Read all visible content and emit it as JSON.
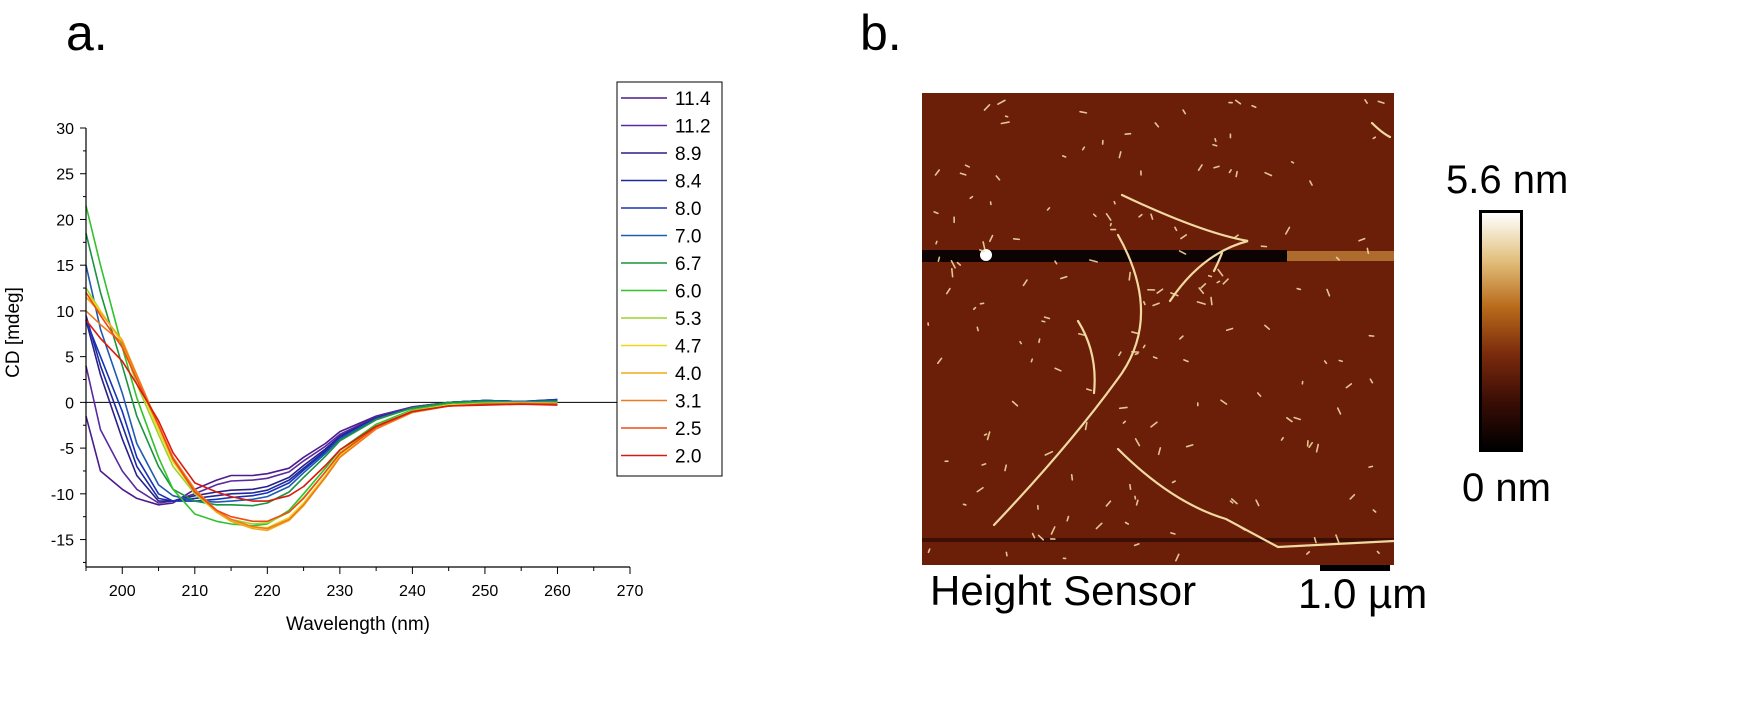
{
  "panel_a": {
    "label": "a."
  },
  "panel_b": {
    "label": "b.",
    "image_caption": "Height Sensor",
    "scale_bar_label": "1.0 µm",
    "colorbar": {
      "max_label": "5.6 nm",
      "min_label": "0 nm",
      "max_value_nm": 5.6,
      "min_value_nm": 0,
      "colors": [
        "#000000",
        "#3a0d05",
        "#7a2a0c",
        "#b86a1a",
        "#e2c07e",
        "#ffffff"
      ]
    },
    "background_color": "#6b1e08",
    "fiber_color": "#f1d9a2"
  },
  "chart_data": {
    "type": "line",
    "title": "",
    "xlabel": "Wavelength (nm)",
    "ylabel": "CD [mdeg]",
    "xlim": [
      195,
      270
    ],
    "ylim": [
      -18,
      30
    ],
    "xticks": [
      200,
      210,
      220,
      230,
      240,
      250,
      260,
      270
    ],
    "yticks": [
      30,
      25,
      20,
      15,
      10,
      5,
      0,
      -5,
      -10,
      -15
    ],
    "zero_line": true,
    "legend_position": "top-right",
    "x": [
      195,
      197,
      200,
      202,
      205,
      207,
      210,
      213,
      215,
      218,
      220,
      223,
      225,
      228,
      230,
      235,
      240,
      245,
      250,
      255,
      260
    ],
    "series": [
      {
        "name": "11.4",
        "color": "#4b1d8f",
        "values": [
          -1.5,
          -7.5,
          -9.5,
          -10.5,
          -11.2,
          -11.0,
          -9.5,
          -8.5,
          -8.0,
          -8.0,
          -7.8,
          -7.2,
          -6.0,
          -4.5,
          -3.2,
          -1.5,
          -0.5,
          0.0,
          0.2,
          0.1,
          0.2
        ]
      },
      {
        "name": "11.2",
        "color": "#5a2aa0",
        "values": [
          4.0,
          -3.0,
          -7.5,
          -9.5,
          -11.0,
          -10.8,
          -10.0,
          -9.0,
          -8.6,
          -8.5,
          -8.3,
          -7.6,
          -6.4,
          -4.8,
          -3.5,
          -1.6,
          -0.5,
          0.0,
          0.2,
          0.1,
          0.2
        ]
      },
      {
        "name": "8.9",
        "color": "#2a1f8c",
        "values": [
          9.0,
          3.0,
          -4.0,
          -8.0,
          -10.8,
          -10.8,
          -10.2,
          -9.8,
          -9.6,
          -9.5,
          -9.2,
          -8.2,
          -6.9,
          -5.1,
          -3.7,
          -1.7,
          -0.6,
          0.0,
          0.2,
          0.1,
          0.2
        ]
      },
      {
        "name": "8.4",
        "color": "#1c2a9c",
        "values": [
          9.5,
          4.0,
          -2.5,
          -7.0,
          -10.5,
          -10.8,
          -10.5,
          -10.2,
          -10.0,
          -9.9,
          -9.6,
          -8.5,
          -7.2,
          -5.3,
          -3.8,
          -1.8,
          -0.6,
          0.0,
          0.2,
          0.1,
          0.3
        ]
      },
      {
        "name": "8.0",
        "color": "#1833b8",
        "values": [
          9.0,
          5.0,
          -1.0,
          -6.0,
          -10.0,
          -10.8,
          -10.8,
          -10.6,
          -10.4,
          -10.2,
          -9.9,
          -8.8,
          -7.4,
          -5.4,
          -3.9,
          -1.8,
          -0.6,
          0.0,
          0.2,
          0.1,
          0.3
        ]
      },
      {
        "name": "7.0",
        "color": "#1f5bb0",
        "values": [
          15.0,
          8.0,
          1.0,
          -4.5,
          -9.0,
          -10.2,
          -10.8,
          -10.9,
          -10.8,
          -10.6,
          -10.3,
          -9.2,
          -7.7,
          -5.6,
          -4.0,
          -1.8,
          -0.6,
          0.0,
          0.2,
          0.1,
          0.2
        ]
      },
      {
        "name": "6.7",
        "color": "#1a9440",
        "values": [
          18.5,
          12.0,
          4.0,
          -1.5,
          -7.0,
          -9.5,
          -10.8,
          -11.2,
          -11.2,
          -11.3,
          -11.0,
          -9.8,
          -8.2,
          -5.9,
          -4.2,
          -1.9,
          -0.6,
          0.0,
          0.1,
          0.0,
          0.1
        ]
      },
      {
        "name": "6.0",
        "color": "#33c22c",
        "values": [
          21.5,
          15.0,
          6.0,
          0.5,
          -6.0,
          -9.5,
          -12.2,
          -13.0,
          -13.3,
          -13.5,
          -13.3,
          -11.8,
          -10.0,
          -7.2,
          -5.2,
          -2.4,
          -0.8,
          -0.2,
          0.0,
          0.0,
          0.0
        ]
      },
      {
        "name": "5.3",
        "color": "#9ad42a",
        "values": [
          12.5,
          10.0,
          6.5,
          2.0,
          -3.5,
          -7.0,
          -10.0,
          -12.0,
          -12.8,
          -13.3,
          -13.2,
          -12.0,
          -10.4,
          -7.6,
          -5.5,
          -2.6,
          -0.9,
          -0.3,
          -0.1,
          0.0,
          -0.1
        ]
      },
      {
        "name": "4.7",
        "color": "#e8d81a",
        "values": [
          12.0,
          10.0,
          6.5,
          2.5,
          -3.0,
          -6.5,
          -9.8,
          -12.0,
          -13.0,
          -13.6,
          -13.7,
          -12.6,
          -11.0,
          -8.0,
          -5.8,
          -2.8,
          -1.0,
          -0.3,
          -0.2,
          -0.1,
          -0.1
        ]
      },
      {
        "name": "4.0",
        "color": "#f2a81c",
        "values": [
          11.5,
          9.8,
          6.8,
          3.0,
          -2.5,
          -6.2,
          -9.6,
          -12.0,
          -13.0,
          -13.8,
          -14.0,
          -12.9,
          -11.3,
          -8.2,
          -6.0,
          -2.9,
          -1.1,
          -0.4,
          -0.2,
          -0.1,
          -0.1
        ]
      },
      {
        "name": "3.1",
        "color": "#f07a22",
        "values": [
          10.0,
          8.5,
          6.5,
          3.0,
          -2.5,
          -6.0,
          -9.5,
          -11.8,
          -12.8,
          -13.6,
          -13.8,
          -12.8,
          -11.2,
          -8.2,
          -6.0,
          -2.9,
          -1.1,
          -0.4,
          -0.2,
          -0.1,
          -0.2
        ]
      },
      {
        "name": "2.5",
        "color": "#f24a14",
        "values": [
          12.0,
          9.5,
          6.0,
          2.5,
          -2.5,
          -6.2,
          -9.8,
          -11.8,
          -12.5,
          -13.0,
          -13.0,
          -12.0,
          -10.5,
          -7.6,
          -5.6,
          -2.7,
          -1.0,
          -0.4,
          -0.2,
          -0.2,
          -0.2
        ]
      },
      {
        "name": "2.0",
        "color": "#d91a12",
        "values": [
          9.0,
          7.0,
          4.5,
          2.0,
          -2.0,
          -5.5,
          -8.8,
          -9.8,
          -10.3,
          -10.8,
          -10.8,
          -10.2,
          -9.2,
          -6.9,
          -5.2,
          -2.6,
          -1.0,
          -0.4,
          -0.3,
          -0.2,
          -0.3
        ]
      }
    ]
  }
}
